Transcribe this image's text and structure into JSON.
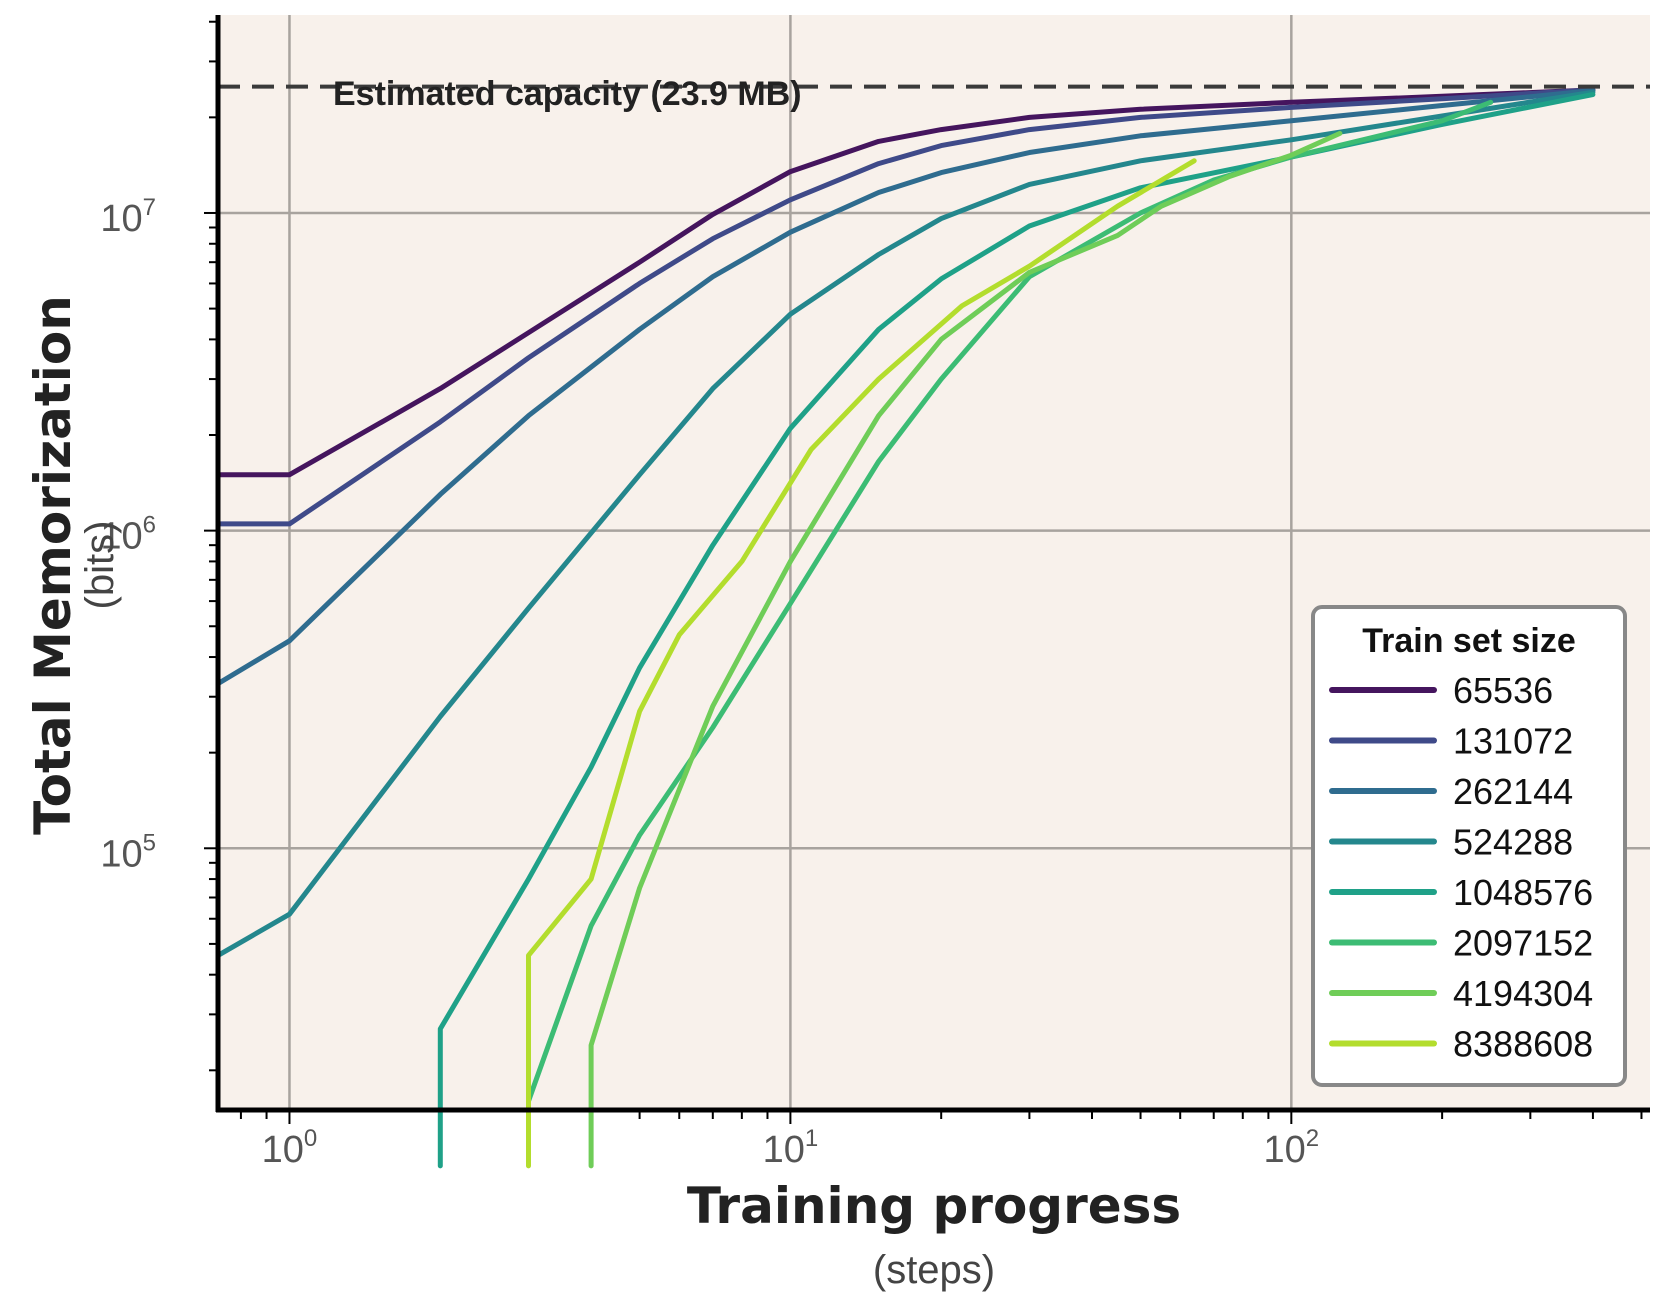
{
  "chart_data": {
    "type": "line",
    "title": "",
    "xlabel": "Training progress",
    "xlabel_sub": "(steps)",
    "ylabel": "Total Memorization",
    "ylabel_sub": "(bits)",
    "x_scale": "log",
    "y_scale": "log",
    "xlim": [
      0.72,
      520
    ],
    "ylim": [
      15000,
      42000000
    ],
    "x_ticks": [
      {
        "value": 1,
        "base": "10",
        "exp": "0"
      },
      {
        "value": 10,
        "base": "10",
        "exp": "1"
      },
      {
        "value": 100,
        "base": "10",
        "exp": "2"
      }
    ],
    "y_ticks": [
      {
        "value": 100000,
        "base": "10",
        "exp": "5"
      },
      {
        "value": 1000000,
        "base": "10",
        "exp": "6"
      },
      {
        "value": 10000000,
        "base": "10",
        "exp": "7"
      }
    ],
    "grid": true,
    "background": "#f8f1eb",
    "capacity_line": {
      "value": 25000000,
      "label": "Estimated capacity (23.9 MB)"
    },
    "legend": {
      "title": "Train set size",
      "placement": "lower-right"
    },
    "series": [
      {
        "name": "65536",
        "color": "#45155e",
        "points": [
          [
            0.72,
            1500000
          ],
          [
            1,
            1500000
          ],
          [
            2,
            2800000
          ],
          [
            3,
            4200000
          ],
          [
            5,
            7000000
          ],
          [
            7,
            9900000
          ],
          [
            10,
            13500000
          ],
          [
            15,
            16800000
          ],
          [
            20,
            18300000
          ],
          [
            30,
            20000000
          ],
          [
            50,
            21200000
          ],
          [
            100,
            22300000
          ],
          [
            200,
            23300000
          ],
          [
            400,
            24400000
          ]
        ]
      },
      {
        "name": "131072",
        "color": "#3f4a89",
        "points": [
          [
            0.72,
            1050000
          ],
          [
            1,
            1050000
          ],
          [
            2,
            2200000
          ],
          [
            3,
            3500000
          ],
          [
            5,
            6000000
          ],
          [
            7,
            8300000
          ],
          [
            10,
            11000000
          ],
          [
            15,
            14300000
          ],
          [
            20,
            16300000
          ],
          [
            30,
            18300000
          ],
          [
            50,
            20000000
          ],
          [
            100,
            21500000
          ],
          [
            200,
            22900000
          ],
          [
            400,
            24400000
          ]
        ]
      },
      {
        "name": "262144",
        "color": "#2f6c8f",
        "points": [
          [
            0.72,
            330000
          ],
          [
            1,
            450000
          ],
          [
            2,
            1300000
          ],
          [
            3,
            2300000
          ],
          [
            5,
            4300000
          ],
          [
            7,
            6300000
          ],
          [
            10,
            8700000
          ],
          [
            15,
            11600000
          ],
          [
            20,
            13400000
          ],
          [
            30,
            15500000
          ],
          [
            50,
            17500000
          ],
          [
            100,
            19500000
          ],
          [
            200,
            21800000
          ],
          [
            400,
            24300000
          ]
        ]
      },
      {
        "name": "524288",
        "color": "#24878d",
        "points": [
          [
            0.72,
            46000
          ],
          [
            1,
            62000
          ],
          [
            2,
            260000
          ],
          [
            3,
            570000
          ],
          [
            5,
            1500000
          ],
          [
            7,
            2800000
          ],
          [
            10,
            4800000
          ],
          [
            15,
            7400000
          ],
          [
            20,
            9600000
          ],
          [
            30,
            12300000
          ],
          [
            50,
            14600000
          ],
          [
            100,
            17000000
          ],
          [
            200,
            20200000
          ],
          [
            400,
            24000000
          ]
        ]
      },
      {
        "name": "1048576",
        "color": "#1fa188",
        "points": [
          [
            2,
            10000
          ],
          [
            2,
            27000
          ],
          [
            3,
            80000
          ],
          [
            4,
            180000
          ],
          [
            5,
            370000
          ],
          [
            7,
            900000
          ],
          [
            10,
            2100000
          ],
          [
            15,
            4300000
          ],
          [
            20,
            6200000
          ],
          [
            30,
            9100000
          ],
          [
            50,
            12000000
          ],
          [
            100,
            15000000
          ],
          [
            200,
            19000000
          ],
          [
            400,
            23600000
          ]
        ]
      },
      {
        "name": "2097152",
        "color": "#3cbc74",
        "points": [
          [
            3,
            16000
          ],
          [
            4,
            57000
          ],
          [
            5,
            110000
          ],
          [
            7,
            240000
          ],
          [
            10,
            590000
          ],
          [
            15,
            1650000
          ],
          [
            20,
            3000000
          ],
          [
            30,
            6300000
          ],
          [
            50,
            10000000
          ],
          [
            70,
            12700000
          ],
          [
            100,
            15000000
          ],
          [
            150,
            17500000
          ],
          [
            200,
            19500000
          ],
          [
            250,
            22300000
          ]
        ]
      },
      {
        "name": "4194304",
        "color": "#6fcd58",
        "points": [
          [
            4,
            10000
          ],
          [
            4,
            24000
          ],
          [
            5,
            75000
          ],
          [
            7,
            280000
          ],
          [
            10,
            800000
          ],
          [
            15,
            2300000
          ],
          [
            20,
            4000000
          ],
          [
            30,
            6500000
          ],
          [
            45,
            8500000
          ],
          [
            55,
            10500000
          ],
          [
            75,
            13000000
          ],
          [
            100,
            15200000
          ],
          [
            125,
            17800000
          ]
        ]
      },
      {
        "name": "8388608",
        "color": "#b3dd2d",
        "points": [
          [
            3,
            10000
          ],
          [
            3,
            46000
          ],
          [
            4,
            80000
          ],
          [
            5,
            270000
          ],
          [
            6,
            470000
          ],
          [
            8,
            800000
          ],
          [
            11,
            1800000
          ],
          [
            15,
            3000000
          ],
          [
            22,
            5100000
          ],
          [
            30,
            6800000
          ],
          [
            45,
            10500000
          ],
          [
            64,
            14600000
          ]
        ]
      }
    ]
  }
}
